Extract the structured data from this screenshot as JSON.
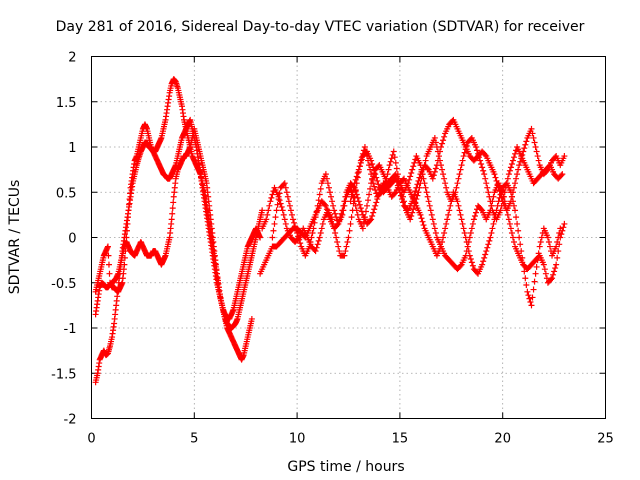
{
  "chart_data": {
    "type": "scatter",
    "title": "Day 281 of 2016, Sidereal Day-to-day VTEC variation (SDTVAR) for receiver",
    "xlabel": "GPS time / hours",
    "ylabel": "SDTVAR / TECUs",
    "xlim": [
      0,
      25
    ],
    "ylim": [
      -2,
      2
    ],
    "xticks": [
      "0",
      "5",
      "10",
      "15",
      "20",
      "25"
    ],
    "yticks": [
      "-2",
      "-1.5",
      "-1",
      "-0.5",
      "0",
      "0.5",
      "1",
      "1.5",
      "2"
    ],
    "grid": true,
    "marker": "plus",
    "color": "#ff0000",
    "series": [
      {
        "x": [
          0.2,
          0.3,
          0.4,
          0.5,
          0.6,
          0.7,
          0.8,
          0.9,
          1.0,
          1.1,
          1.2,
          1.3,
          1.4,
          1.5,
          1.6,
          1.7,
          1.8,
          1.9,
          2.0,
          2.1,
          2.2,
          2.3,
          2.4,
          2.5,
          2.6,
          2.7,
          2.8,
          2.9,
          3.0,
          3.1,
          3.2,
          3.3,
          3.4,
          3.5,
          3.6,
          3.7,
          3.8,
          3.9,
          4.0,
          4.1,
          4.2,
          4.3,
          4.4,
          4.5,
          4.6,
          4.7,
          4.8,
          4.9,
          5.0,
          5.1,
          5.2,
          5.3,
          5.4,
          5.5,
          5.6,
          5.7,
          5.8,
          5.9,
          6.0,
          6.1,
          6.2,
          6.3,
          6.4,
          6.5,
          6.6,
          6.7,
          6.8,
          6.9,
          7.0,
          7.1,
          7.2,
          7.3,
          7.4,
          7.5,
          7.6,
          7.7,
          7.8,
          7.9,
          8.0,
          8.1,
          8.2,
          8.3
        ],
        "y": [
          -1.6,
          -1.5,
          -1.35,
          -1.3,
          -1.25,
          -1.3,
          -1.28,
          -1.2,
          -1.1,
          -0.95,
          -0.75,
          -0.55,
          -0.35,
          -0.15,
          0.0,
          0.15,
          0.3,
          0.45,
          0.6,
          0.7,
          0.8,
          0.88,
          0.95,
          1.0,
          1.05,
          1.05,
          1.0,
          0.98,
          0.95,
          0.95,
          1.0,
          1.05,
          1.1,
          1.2,
          1.3,
          1.45,
          1.6,
          1.7,
          1.75,
          1.72,
          1.65,
          1.55,
          1.45,
          1.3,
          1.2,
          1.1,
          1.0,
          0.9,
          0.85,
          0.8,
          0.75,
          0.7,
          0.6,
          0.5,
          0.35,
          0.2,
          0.05,
          -0.1,
          -0.25,
          -0.4,
          -0.55,
          -0.7,
          -0.8,
          -0.9,
          -0.95,
          -0.98,
          -1.0,
          -0.98,
          -0.95,
          -0.9,
          -0.8,
          -0.7,
          -0.6,
          -0.5,
          -0.4,
          -0.3,
          -0.2,
          -0.1,
          0.0,
          0.1,
          0.2,
          0.3
        ]
      },
      {
        "x": [
          0.2,
          0.3,
          0.4,
          0.5,
          0.6,
          0.7,
          0.8,
          0.9,
          1.0,
          1.1,
          1.2,
          1.3,
          1.4,
          1.5,
          1.6,
          1.7,
          1.8,
          1.9,
          2.0,
          2.1,
          2.2,
          2.3,
          2.4,
          2.5,
          2.6,
          2.7,
          2.8,
          2.9,
          3.0,
          3.1,
          3.2,
          3.3,
          3.4,
          3.5,
          3.6,
          3.7,
          3.8,
          3.9,
          4.0,
          4.1,
          4.2,
          4.3,
          4.4,
          4.5,
          4.6,
          4.7,
          4.8,
          4.9,
          5.0,
          5.1,
          5.2,
          5.3,
          5.4,
          5.5,
          5.6,
          5.7,
          5.8,
          5.9,
          6.0,
          6.1,
          6.2,
          6.3,
          6.4,
          6.5,
          6.6,
          6.7,
          6.8,
          6.9,
          7.0,
          7.1,
          7.2,
          7.3,
          7.4,
          7.5,
          7.6,
          7.7,
          7.8,
          7.9,
          8.0,
          8.1,
          8.2
        ],
        "y": [
          -0.6,
          -0.5,
          -0.4,
          -0.3,
          -0.2,
          -0.15,
          -0.1,
          -0.5,
          -0.55,
          -0.55,
          -0.58,
          -0.6,
          -0.55,
          -0.5,
          -0.3,
          0.0,
          0.3,
          0.55,
          0.7,
          0.85,
          0.9,
          1.0,
          1.1,
          1.2,
          1.25,
          1.2,
          1.1,
          1.0,
          0.95,
          0.9,
          0.85,
          0.8,
          0.75,
          0.7,
          0.68,
          0.65,
          0.65,
          0.7,
          0.75,
          0.8,
          0.9,
          1.0,
          1.1,
          1.15,
          1.2,
          1.25,
          1.3,
          1.2,
          1.1,
          1.0,
          0.85,
          0.7,
          0.55,
          0.4,
          0.25,
          0.1,
          -0.05,
          -0.2,
          -0.35,
          -0.5,
          -0.6,
          -0.7,
          -0.8,
          -0.85,
          -0.9,
          -0.9,
          -0.85,
          -0.8,
          -0.7,
          -0.6,
          -0.5,
          -0.4,
          -0.3,
          -0.2,
          -0.1,
          -0.05,
          0.0,
          0.05,
          0.1,
          0.05,
          0.0
        ]
      },
      {
        "x": [
          0.2,
          0.3,
          0.4,
          0.5,
          0.6,
          0.7,
          0.8,
          0.9,
          1.0,
          1.1,
          1.2,
          1.3,
          1.4,
          1.5,
          1.6,
          1.7,
          1.8,
          1.9,
          2.0,
          2.1,
          2.2,
          2.3,
          2.4,
          2.5,
          2.6,
          2.7,
          2.8,
          2.9,
          3.0,
          3.1,
          3.2,
          3.3,
          3.4,
          3.5,
          3.6,
          3.7,
          3.8,
          3.9,
          4.0,
          4.1,
          4.2,
          4.3,
          4.4,
          4.5,
          4.6,
          4.7,
          4.8,
          4.9,
          5.0,
          5.1,
          5.2,
          5.3,
          5.4,
          5.5,
          5.6,
          5.7,
          5.8,
          5.9,
          6.0,
          6.1,
          6.2,
          6.3,
          6.4,
          6.5,
          6.6,
          6.7,
          6.8,
          6.9,
          7.0,
          7.1,
          7.2,
          7.3,
          7.4,
          7.5,
          7.6,
          7.7,
          7.8
        ],
        "y": [
          -0.85,
          -0.7,
          -0.55,
          -0.5,
          -0.52,
          -0.55,
          -0.55,
          -0.52,
          -0.5,
          -0.48,
          -0.45,
          -0.4,
          -0.3,
          -0.2,
          -0.1,
          -0.05,
          -0.1,
          -0.15,
          -0.18,
          -0.2,
          -0.15,
          -0.1,
          -0.05,
          -0.1,
          -0.15,
          -0.2,
          -0.2,
          -0.2,
          -0.15,
          -0.15,
          -0.2,
          -0.25,
          -0.3,
          -0.25,
          -0.2,
          -0.1,
          0.0,
          0.2,
          0.45,
          0.65,
          0.75,
          0.8,
          0.85,
          0.9,
          0.9,
          0.95,
          1.0,
          1.1,
          1.2,
          1.1,
          1.0,
          0.9,
          0.8,
          0.7,
          0.6,
          0.4,
          0.2,
          0.0,
          -0.2,
          -0.4,
          -0.6,
          -0.7,
          -0.8,
          -0.9,
          -1.0,
          -1.05,
          -1.1,
          -1.15,
          -1.2,
          -1.25,
          -1.3,
          -1.35,
          -1.3,
          -1.2,
          -1.1,
          -1.0,
          -0.9
        ]
      },
      {
        "x": [
          8.3,
          8.5,
          8.7,
          8.9,
          9.1,
          9.3,
          9.5,
          9.7,
          9.9,
          10.1,
          10.3,
          10.5,
          10.7,
          10.9,
          11.1,
          11.3,
          11.5,
          11.7,
          11.9,
          12.1,
          12.3,
          12.5,
          12.7,
          12.9,
          13.1,
          13.3,
          13.5,
          13.7,
          13.9,
          14.1,
          14.3,
          14.5,
          14.7,
          14.9,
          15.1,
          15.3,
          15.5,
          15.7,
          15.9,
          16.1,
          16.3,
          16.5,
          16.7,
          16.9,
          17.1,
          17.3,
          17.5,
          17.7,
          17.9,
          18.1,
          18.3,
          18.5,
          18.7,
          18.9,
          19.1,
          19.3,
          19.5,
          19.7,
          19.9,
          20.1,
          20.3,
          20.5,
          20.7,
          20.9,
          21.1,
          21.3,
          21.5,
          21.7,
          21.9,
          22.1,
          22.3,
          22.5,
          22.7,
          22.9
        ],
        "y": [
          0.1,
          0.2,
          0.4,
          0.55,
          0.45,
          0.3,
          0.1,
          0.0,
          -0.05,
          0.0,
          0.1,
          0.0,
          -0.1,
          -0.15,
          0.0,
          0.2,
          0.3,
          0.2,
          0.0,
          -0.2,
          -0.2,
          0.0,
          0.3,
          0.6,
          0.85,
          1.0,
          0.8,
          0.6,
          0.45,
          0.5,
          0.6,
          0.8,
          0.95,
          0.7,
          0.5,
          0.3,
          0.2,
          0.35,
          0.5,
          0.7,
          0.9,
          1.0,
          1.1,
          0.9,
          0.7,
          0.5,
          0.4,
          0.5,
          0.7,
          0.9,
          1.05,
          1.1,
          1.0,
          0.85,
          0.7,
          0.5,
          0.3,
          0.2,
          0.3,
          0.5,
          0.7,
          0.85,
          1.0,
          0.9,
          0.8,
          0.7,
          0.6,
          0.65,
          0.7,
          0.75,
          0.8,
          0.7,
          0.65,
          0.7
        ]
      },
      {
        "x": [
          8.2,
          8.4,
          8.6,
          8.8,
          9.0,
          9.2,
          9.4,
          9.6,
          9.8,
          10.0,
          10.2,
          10.4,
          10.6,
          10.8,
          11.0,
          11.2,
          11.4,
          11.6,
          11.8,
          12.0,
          12.2,
          12.4,
          12.6,
          12.8,
          13.0,
          13.2,
          13.4,
          13.6,
          13.8,
          14.0,
          14.2,
          14.4,
          14.6,
          14.8,
          15.0,
          15.2,
          15.4,
          15.6,
          15.8,
          16.0,
          16.2,
          16.4,
          16.6,
          16.8,
          17.0,
          17.2,
          17.4,
          17.6,
          17.8,
          18.0,
          18.2,
          18.4,
          18.6,
          18.8,
          19.0,
          19.2,
          19.4,
          19.6,
          19.8,
          20.0,
          20.2,
          20.4,
          20.6,
          20.8,
          21.0,
          21.2,
          21.4,
          21.6,
          21.8,
          22.0,
          22.2,
          22.4,
          22.6,
          22.8
        ],
        "y": [
          -0.4,
          -0.3,
          -0.2,
          -0.1,
          -0.1,
          -0.05,
          0.0,
          0.05,
          0.1,
          0.1,
          0.05,
          0.0,
          0.1,
          0.2,
          0.3,
          0.4,
          0.35,
          0.2,
          0.1,
          0.15,
          0.3,
          0.5,
          0.6,
          0.55,
          0.4,
          0.25,
          0.15,
          0.2,
          0.35,
          0.5,
          0.6,
          0.55,
          0.45,
          0.5,
          0.6,
          0.65,
          0.55,
          0.45,
          0.35,
          0.25,
          0.1,
          0.0,
          -0.1,
          -0.2,
          -0.1,
          0.1,
          0.3,
          0.5,
          0.4,
          0.2,
          0.0,
          -0.2,
          -0.35,
          -0.4,
          -0.3,
          -0.15,
          0.0,
          0.2,
          0.4,
          0.55,
          0.6,
          0.5,
          0.3,
          0.0,
          -0.3,
          -0.6,
          -0.75,
          -0.4,
          -0.1,
          0.1,
          0.0,
          -0.2,
          -0.1,
          0.1
        ]
      },
      {
        "x": [
          8.8,
          9.0,
          9.2,
          9.4,
          9.6,
          9.8,
          10.0,
          10.2,
          10.4,
          10.6,
          10.8,
          11.0,
          11.2,
          11.4,
          11.6,
          11.8,
          12.0,
          12.2,
          12.4,
          12.6,
          12.8,
          13.0,
          13.2,
          13.4,
          13.6,
          13.8,
          14.0,
          14.2,
          14.4,
          14.6,
          14.8,
          15.0,
          15.2,
          15.4,
          15.6,
          15.8,
          16.0,
          16.2,
          16.4,
          16.6,
          16.8,
          17.0,
          17.2,
          17.4,
          17.6,
          17.8,
          18.0,
          18.2,
          18.4,
          18.6,
          18.8,
          19.0,
          19.2,
          19.4,
          19.6,
          19.8,
          20.0,
          20.2,
          20.4,
          20.6,
          20.8,
          21.0,
          21.2,
          21.4,
          21.6,
          21.8,
          22.0,
          22.2,
          22.4,
          22.6,
          22.8,
          23.0
        ],
        "y": [
          0.0,
          0.3,
          0.55,
          0.6,
          0.4,
          0.2,
          0.05,
          -0.1,
          -0.2,
          -0.1,
          0.1,
          0.35,
          0.6,
          0.7,
          0.5,
          0.3,
          0.15,
          0.25,
          0.45,
          0.55,
          0.4,
          0.2,
          0.1,
          0.35,
          0.6,
          0.75,
          0.8,
          0.7,
          0.6,
          0.65,
          0.7,
          0.6,
          0.5,
          0.6,
          0.75,
          0.9,
          0.8,
          0.6,
          0.4,
          0.2,
          0.0,
          -0.1,
          -0.2,
          -0.25,
          -0.3,
          -0.35,
          -0.3,
          -0.2,
          0.0,
          0.2,
          0.35,
          0.3,
          0.2,
          0.3,
          0.5,
          0.6,
          0.5,
          0.3,
          0.1,
          -0.1,
          -0.2,
          -0.3,
          -0.35,
          -0.3,
          -0.25,
          -0.2,
          -0.3,
          -0.5,
          -0.45,
          -0.3,
          0.0,
          0.15
        ]
      },
      {
        "x": [
          12.6,
          12.8,
          13.0,
          13.2,
          13.4,
          13.6,
          13.8,
          14.0,
          14.2,
          14.4,
          14.6,
          14.8,
          15.0,
          15.2,
          15.4,
          15.6,
          15.8,
          16.0,
          16.2,
          16.4,
          16.6,
          16.8,
          17.0,
          17.2,
          17.4,
          17.6,
          17.8,
          18.0,
          18.2,
          18.4,
          18.6,
          18.8,
          19.0,
          19.2,
          19.4,
          19.6,
          19.8,
          20.0,
          20.2,
          20.4,
          20.6,
          20.8,
          21.0,
          21.2,
          21.4,
          21.6,
          21.8,
          22.0,
          22.2,
          22.4,
          22.6,
          22.8,
          23.0
        ],
        "y": [
          0.4,
          0.6,
          0.75,
          0.9,
          0.95,
          0.85,
          0.7,
          0.55,
          0.5,
          0.55,
          0.6,
          0.65,
          0.5,
          0.35,
          0.3,
          0.4,
          0.55,
          0.7,
          0.8,
          0.75,
          0.65,
          0.8,
          1.0,
          1.15,
          1.25,
          1.3,
          1.2,
          1.1,
          1.0,
          0.9,
          0.85,
          0.9,
          0.95,
          0.9,
          0.8,
          0.7,
          0.55,
          0.4,
          0.3,
          0.4,
          0.6,
          0.8,
          0.95,
          1.1,
          1.2,
          1.0,
          0.8,
          0.7,
          0.75,
          0.85,
          0.9,
          0.8,
          0.9
        ]
      }
    ]
  }
}
